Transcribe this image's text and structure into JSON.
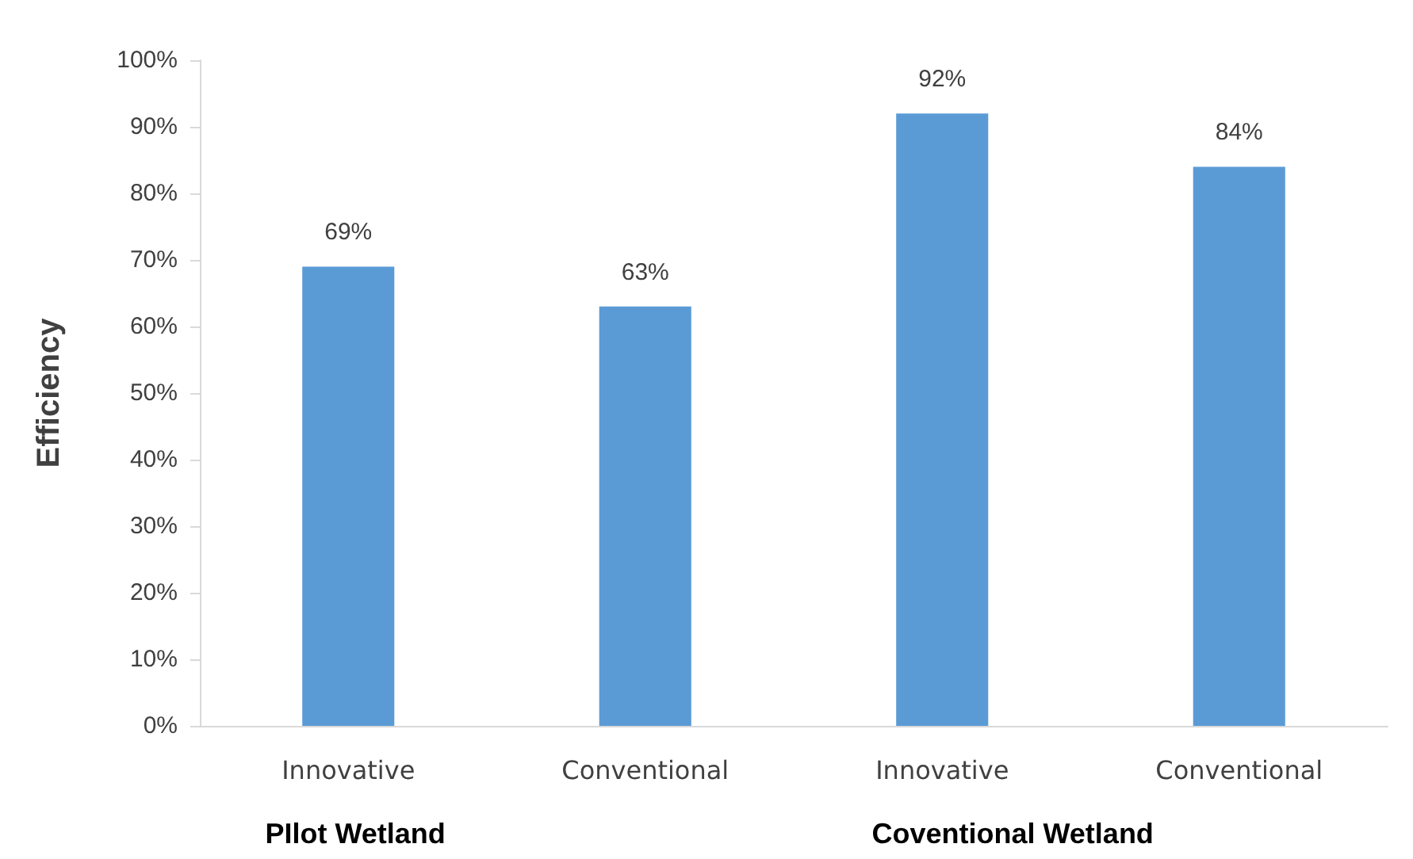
{
  "chart_data": {
    "type": "bar",
    "ylabel": "Efficiency",
    "categories": [
      "Innovative",
      "Conventional",
      "Innovative",
      "Conventional"
    ],
    "values": [
      69,
      63,
      92,
      84
    ],
    "value_labels": [
      "69%",
      "63%",
      "92%",
      "84%"
    ],
    "color": "#5b9bd5",
    "ylim": [
      0,
      100
    ],
    "yticks": [
      {
        "value": 0,
        "label": "0%"
      },
      {
        "value": 10,
        "label": "10%"
      },
      {
        "value": 20,
        "label": "20%"
      },
      {
        "value": 30,
        "label": "30%"
      },
      {
        "value": 40,
        "label": "40%"
      },
      {
        "value": 50,
        "label": "50%"
      },
      {
        "value": 60,
        "label": "60%"
      },
      {
        "value": 70,
        "label": "70%"
      },
      {
        "value": 80,
        "label": "80%"
      },
      {
        "value": 90,
        "label": "90%"
      },
      {
        "value": 100,
        "label": "100%"
      }
    ],
    "annotations": [
      "PIlot Wetland",
      "Coventional Wetland"
    ],
    "grid": false
  }
}
